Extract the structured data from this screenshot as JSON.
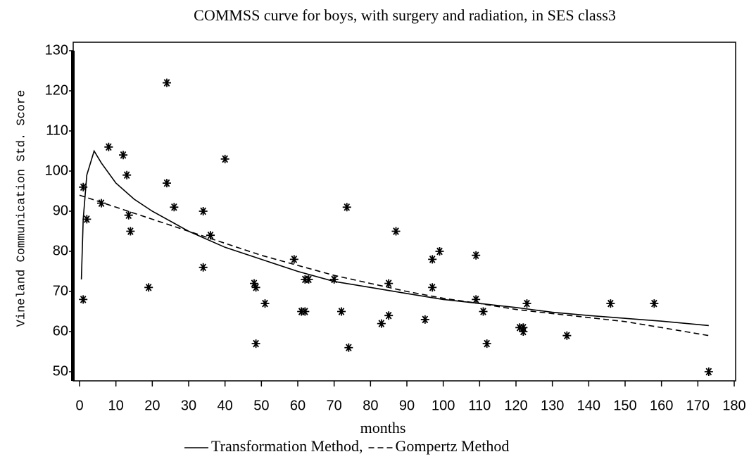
{
  "chart_data": {
    "type": "scatter",
    "title": "COMMSS curve for boys, with surgery and radiation, in SES class3",
    "x_label": "months",
    "y_label": "Vineland Communication Std. Score",
    "marker_color": "#000000",
    "x": [
      1,
      1,
      2,
      6,
      8,
      12,
      13,
      13.5,
      14,
      19,
      24,
      24,
      26,
      34,
      34,
      36,
      40,
      48,
      48.5,
      48.5,
      51,
      59,
      61,
      62,
      62,
      63,
      70,
      72,
      73.5,
      74,
      83,
      85,
      85,
      87,
      95,
      97,
      97,
      99,
      109,
      109,
      111,
      112,
      121,
      122,
      122,
      123,
      134,
      146,
      158,
      173
    ],
    "values": [
      96,
      68,
      88,
      92,
      106,
      104,
      99,
      89,
      85,
      71,
      122,
      97,
      91,
      90,
      76,
      84,
      103,
      72,
      71,
      57,
      67,
      78,
      65,
      65,
      73,
      73,
      73,
      65,
      91,
      56,
      62,
      72,
      64,
      85,
      63,
      78,
      71,
      80,
      79,
      68,
      65,
      57,
      61,
      61,
      60,
      67,
      59,
      67,
      67,
      50
    ],
    "series": [
      {
        "name": "Transformation Method,",
        "color": "#000000",
        "dash": "solid",
        "x": [
          0.5,
          1,
          2,
          4,
          6,
          10,
          15,
          20,
          30,
          40,
          50,
          60,
          70,
          80,
          90,
          100,
          110,
          120,
          130,
          140,
          150,
          160,
          173
        ],
        "values": [
          73,
          88,
          99,
          105,
          102,
          97,
          93,
          90,
          85,
          81,
          78,
          75,
          72.5,
          71,
          69.5,
          68,
          67,
          66,
          64.8,
          64,
          63.3,
          62.6,
          61.5
        ]
      },
      {
        "name": "Gompertz Method",
        "color": "#000000",
        "dash": "dashed",
        "x": [
          0,
          10,
          20,
          30,
          40,
          50,
          60,
          70,
          80,
          90,
          100,
          110,
          120,
          130,
          140,
          150,
          160,
          173
        ],
        "values": [
          94,
          91,
          88,
          85,
          82,
          79,
          76.5,
          74,
          72,
          70,
          68.3,
          67,
          65.5,
          64.5,
          63.5,
          62.5,
          61,
          59
        ]
      }
    ],
    "xlim": [
      0,
      180
    ],
    "ylim": [
      50,
      130
    ],
    "xticks": [
      0,
      10,
      20,
      30,
      40,
      50,
      60,
      70,
      80,
      90,
      100,
      110,
      120,
      130,
      140,
      150,
      160,
      170,
      180
    ],
    "yticks": [
      50,
      60,
      70,
      80,
      90,
      100,
      110,
      120,
      130
    ]
  }
}
